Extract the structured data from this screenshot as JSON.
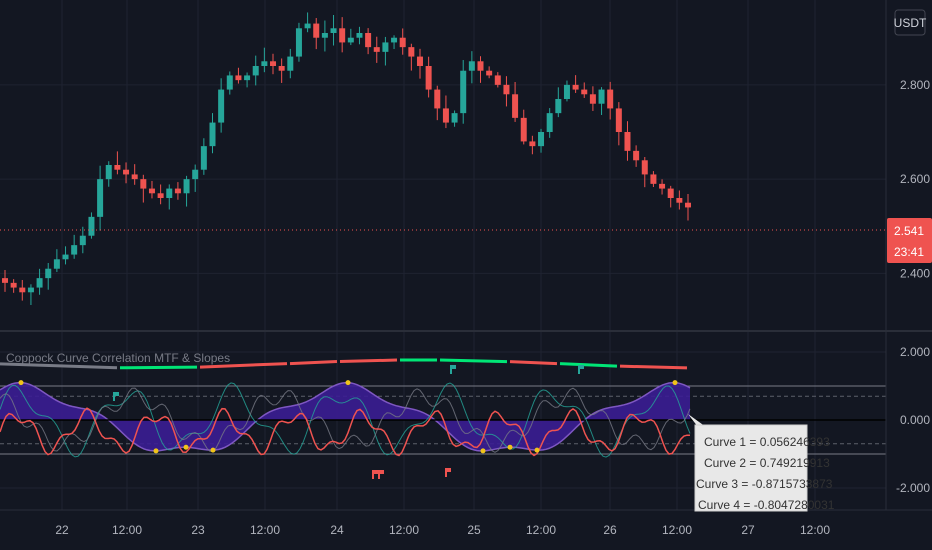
{
  "currency_badge": "USDT",
  "indicator_title": "Coppock Curve Correlation MTF & Slopes",
  "last_price": {
    "value": "2.541",
    "countdown": "23:41",
    "color": "#ef5350"
  },
  "colors": {
    "up": "#26a69a",
    "down": "#ef5350",
    "bg": "#131722",
    "grid": "#1f2331",
    "text": "#b2b5be",
    "fill": "#3b1d94"
  },
  "tooltip": [
    "Curve 1 = 0.056246393",
    "Curve 2 = 0.749219913",
    "Curve 3 = -0.8715733873",
    "Curve 4 = -0.8047280031"
  ],
  "chart_data": {
    "type": "candlestick",
    "x_ticks": [
      "22",
      "12:00",
      "23",
      "12:00",
      "24",
      "12:00",
      "25",
      "12:00",
      "26",
      "12:00",
      "27",
      "12:00"
    ],
    "price_axis": {
      "ticks": [
        "2.800",
        "2.600",
        "2.400"
      ],
      "ylim": [
        2.28,
        2.98
      ]
    },
    "close_series": [
      2.38,
      2.37,
      2.36,
      2.37,
      2.39,
      2.41,
      2.43,
      2.44,
      2.46,
      2.48,
      2.52,
      2.6,
      2.63,
      2.62,
      2.61,
      2.6,
      2.58,
      2.57,
      2.56,
      2.58,
      2.57,
      2.6,
      2.62,
      2.67,
      2.72,
      2.79,
      2.82,
      2.81,
      2.82,
      2.84,
      2.85,
      2.84,
      2.83,
      2.86,
      2.92,
      2.93,
      2.9,
      2.91,
      2.92,
      2.89,
      2.9,
      2.91,
      2.88,
      2.87,
      2.89,
      2.9,
      2.88,
      2.86,
      2.84,
      2.79,
      2.75,
      2.72,
      2.74,
      2.83,
      2.85,
      2.83,
      2.82,
      2.8,
      2.78,
      2.73,
      2.68,
      2.67,
      2.7,
      2.74,
      2.77,
      2.8,
      2.79,
      2.78,
      2.76,
      2.79,
      2.75,
      2.7,
      2.66,
      2.64,
      2.61,
      2.59,
      2.58,
      2.56,
      2.55,
      2.54
    ],
    "oscillator_axis": {
      "ticks": [
        "2.000",
        "0.000",
        "-2.000"
      ],
      "ylim": [
        -2.5,
        2.5
      ]
    },
    "series": [
      {
        "name": "Curve 1",
        "color": "#ef5350",
        "last": 0.056246393
      },
      {
        "name": "Curve 2",
        "color": "#7e57c2",
        "last": 0.749219913
      },
      {
        "name": "Curve 3",
        "color": "#26a69a",
        "last": -0.8715733873
      },
      {
        "name": "Curve 4",
        "color": "#787b86",
        "last": -0.8047280031
      }
    ],
    "slope_line_value": 1.65
  }
}
